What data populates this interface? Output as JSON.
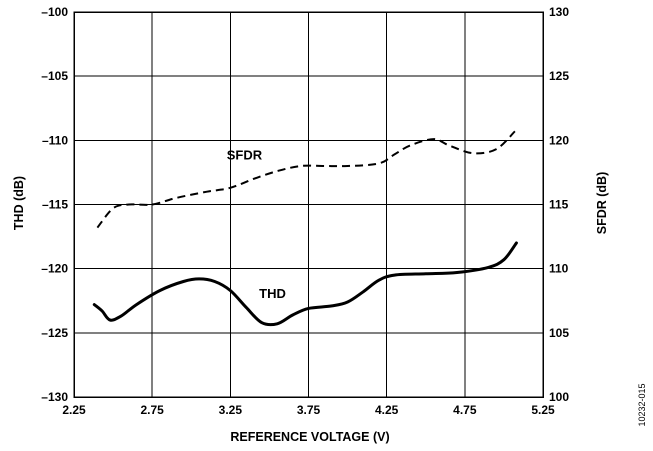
{
  "figure_id": "10232-015",
  "chart_data": {
    "type": "line",
    "title": "",
    "xlabel": "REFERENCE VOLTAGE (V)",
    "ylabel_left": "THD (dB)",
    "ylabel_right": "SFDR (dB)",
    "xlim": [
      2.25,
      5.25
    ],
    "ylim_left": [
      -130,
      -100
    ],
    "ylim_right": [
      100,
      130
    ],
    "x_ticks": [
      2.25,
      2.75,
      3.25,
      3.75,
      4.25,
      4.75,
      5.25
    ],
    "x_tick_labels": [
      "2.25",
      "2.75",
      "3.25",
      "3.75",
      "4.25",
      "4.75",
      "5.25"
    ],
    "y_left_ticks": [
      -130,
      -125,
      -120,
      -115,
      -110,
      -105,
      -100
    ],
    "y_left_tick_labels": [
      "–130",
      "–125",
      "–120",
      "–115",
      "–110",
      "–105",
      "–100"
    ],
    "y_right_ticks": [
      100,
      105,
      110,
      115,
      120,
      125,
      130
    ],
    "y_right_tick_labels": [
      "100",
      "105",
      "110",
      "115",
      "120",
      "125",
      "130"
    ],
    "grid": true,
    "series": [
      {
        "name": "SFDR",
        "axis": "right",
        "style": "dashed",
        "x": [
          2.4,
          2.5,
          2.6,
          2.75,
          2.9,
          3.1,
          3.25,
          3.4,
          3.55,
          3.7,
          3.85,
          4.0,
          4.2,
          4.3,
          4.4,
          4.55,
          4.65,
          4.8,
          4.95,
          5.07
        ],
        "values": [
          113.2,
          114.7,
          115.0,
          115.0,
          115.5,
          116.0,
          116.3,
          117.0,
          117.6,
          118.0,
          118.0,
          118.0,
          118.2,
          118.9,
          119.6,
          120.1,
          119.6,
          119.0,
          119.3,
          120.7
        ]
      },
      {
        "name": "THD",
        "axis": "left",
        "style": "solid",
        "x": [
          2.38,
          2.43,
          2.48,
          2.55,
          2.65,
          2.8,
          2.95,
          3.05,
          3.15,
          3.25,
          3.35,
          3.45,
          3.55,
          3.65,
          3.75,
          3.9,
          4.0,
          4.1,
          4.2,
          4.3,
          4.5,
          4.7,
          4.9,
          5.0,
          5.08
        ],
        "values": [
          -122.8,
          -123.3,
          -124.0,
          -123.7,
          -122.8,
          -121.7,
          -121.0,
          -120.8,
          -121.0,
          -121.7,
          -123.0,
          -124.2,
          -124.3,
          -123.6,
          -123.1,
          -122.9,
          -122.6,
          -121.8,
          -120.9,
          -120.5,
          -120.4,
          -120.3,
          -119.9,
          -119.3,
          -118.0
        ]
      }
    ],
    "annotations": [
      {
        "text": "SFDR",
        "x": 3.34,
        "y_left": -111.5
      },
      {
        "text": "THD",
        "x": 3.52,
        "y_left": -122.3
      }
    ]
  }
}
